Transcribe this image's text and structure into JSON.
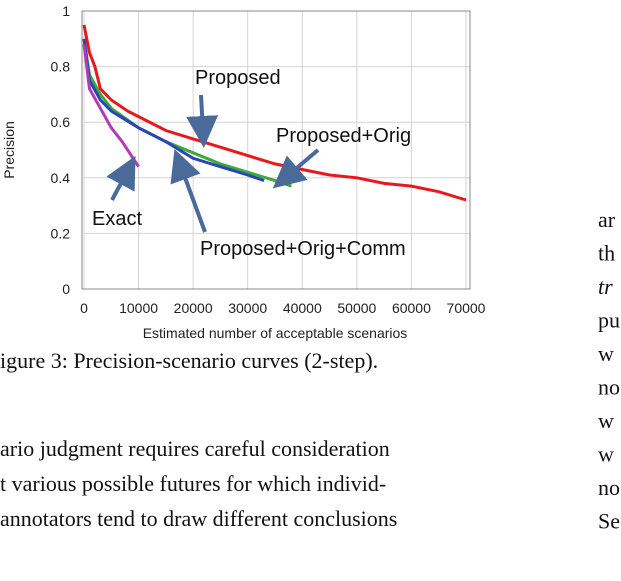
{
  "chart_data": {
    "type": "line",
    "ylabel": "Precision",
    "xlabel": "Estimated number of acceptable scenarios",
    "xlim": [
      0,
      70000
    ],
    "xticks": [
      0,
      10000,
      20000,
      30000,
      40000,
      50000,
      60000,
      70000
    ],
    "ylim": [
      0,
      1
    ],
    "yticks": [
      0,
      0.2,
      0.4,
      0.6,
      0.8,
      1
    ],
    "grid": true,
    "series": [
      {
        "name": "Proposed",
        "color": "#e8191e",
        "x": [
          0,
          1000,
          2000,
          3000,
          5000,
          8000,
          10000,
          15000,
          20000,
          25000,
          30000,
          35000,
          40000,
          45000,
          50000,
          55000,
          60000,
          65000,
          70000
        ],
        "values": [
          0.95,
          0.85,
          0.8,
          0.72,
          0.68,
          0.64,
          0.62,
          0.57,
          0.54,
          0.51,
          0.48,
          0.45,
          0.43,
          0.41,
          0.4,
          0.38,
          0.37,
          0.35,
          0.32
        ]
      },
      {
        "name": "Proposed+Orig",
        "color": "#3daa3a",
        "x": [
          0,
          1000,
          3000,
          5000,
          10000,
          15000,
          20000,
          25000,
          30000,
          35000,
          38000
        ],
        "values": [
          0.9,
          0.77,
          0.7,
          0.65,
          0.58,
          0.53,
          0.49,
          0.45,
          0.42,
          0.39,
          0.37
        ]
      },
      {
        "name": "Proposed+Orig+Comm",
        "color": "#2a45b8",
        "x": [
          0,
          1000,
          3000,
          5000,
          10000,
          15000,
          20000,
          25000,
          30000,
          33000
        ],
        "values": [
          0.9,
          0.75,
          0.68,
          0.64,
          0.58,
          0.53,
          0.47,
          0.44,
          0.41,
          0.39
        ]
      },
      {
        "name": "Exact",
        "color": "#b03bb5",
        "x": [
          0,
          1000,
          3000,
          5000,
          7000,
          9000,
          10000
        ],
        "values": [
          0.88,
          0.72,
          0.65,
          0.58,
          0.53,
          0.47,
          0.44
        ]
      }
    ]
  },
  "caption": "igure 3: Precision-scenario curves (2-step).",
  "body_left": [
    "ario judgment requires careful consideration",
    "t various possible futures for which individ-",
    "annotators tend to draw different conclusions"
  ],
  "body_right": [
    "ar",
    "th",
    "tr",
    "pu",
    "w",
    "no",
    "w",
    "w",
    "no",
    "Se"
  ]
}
